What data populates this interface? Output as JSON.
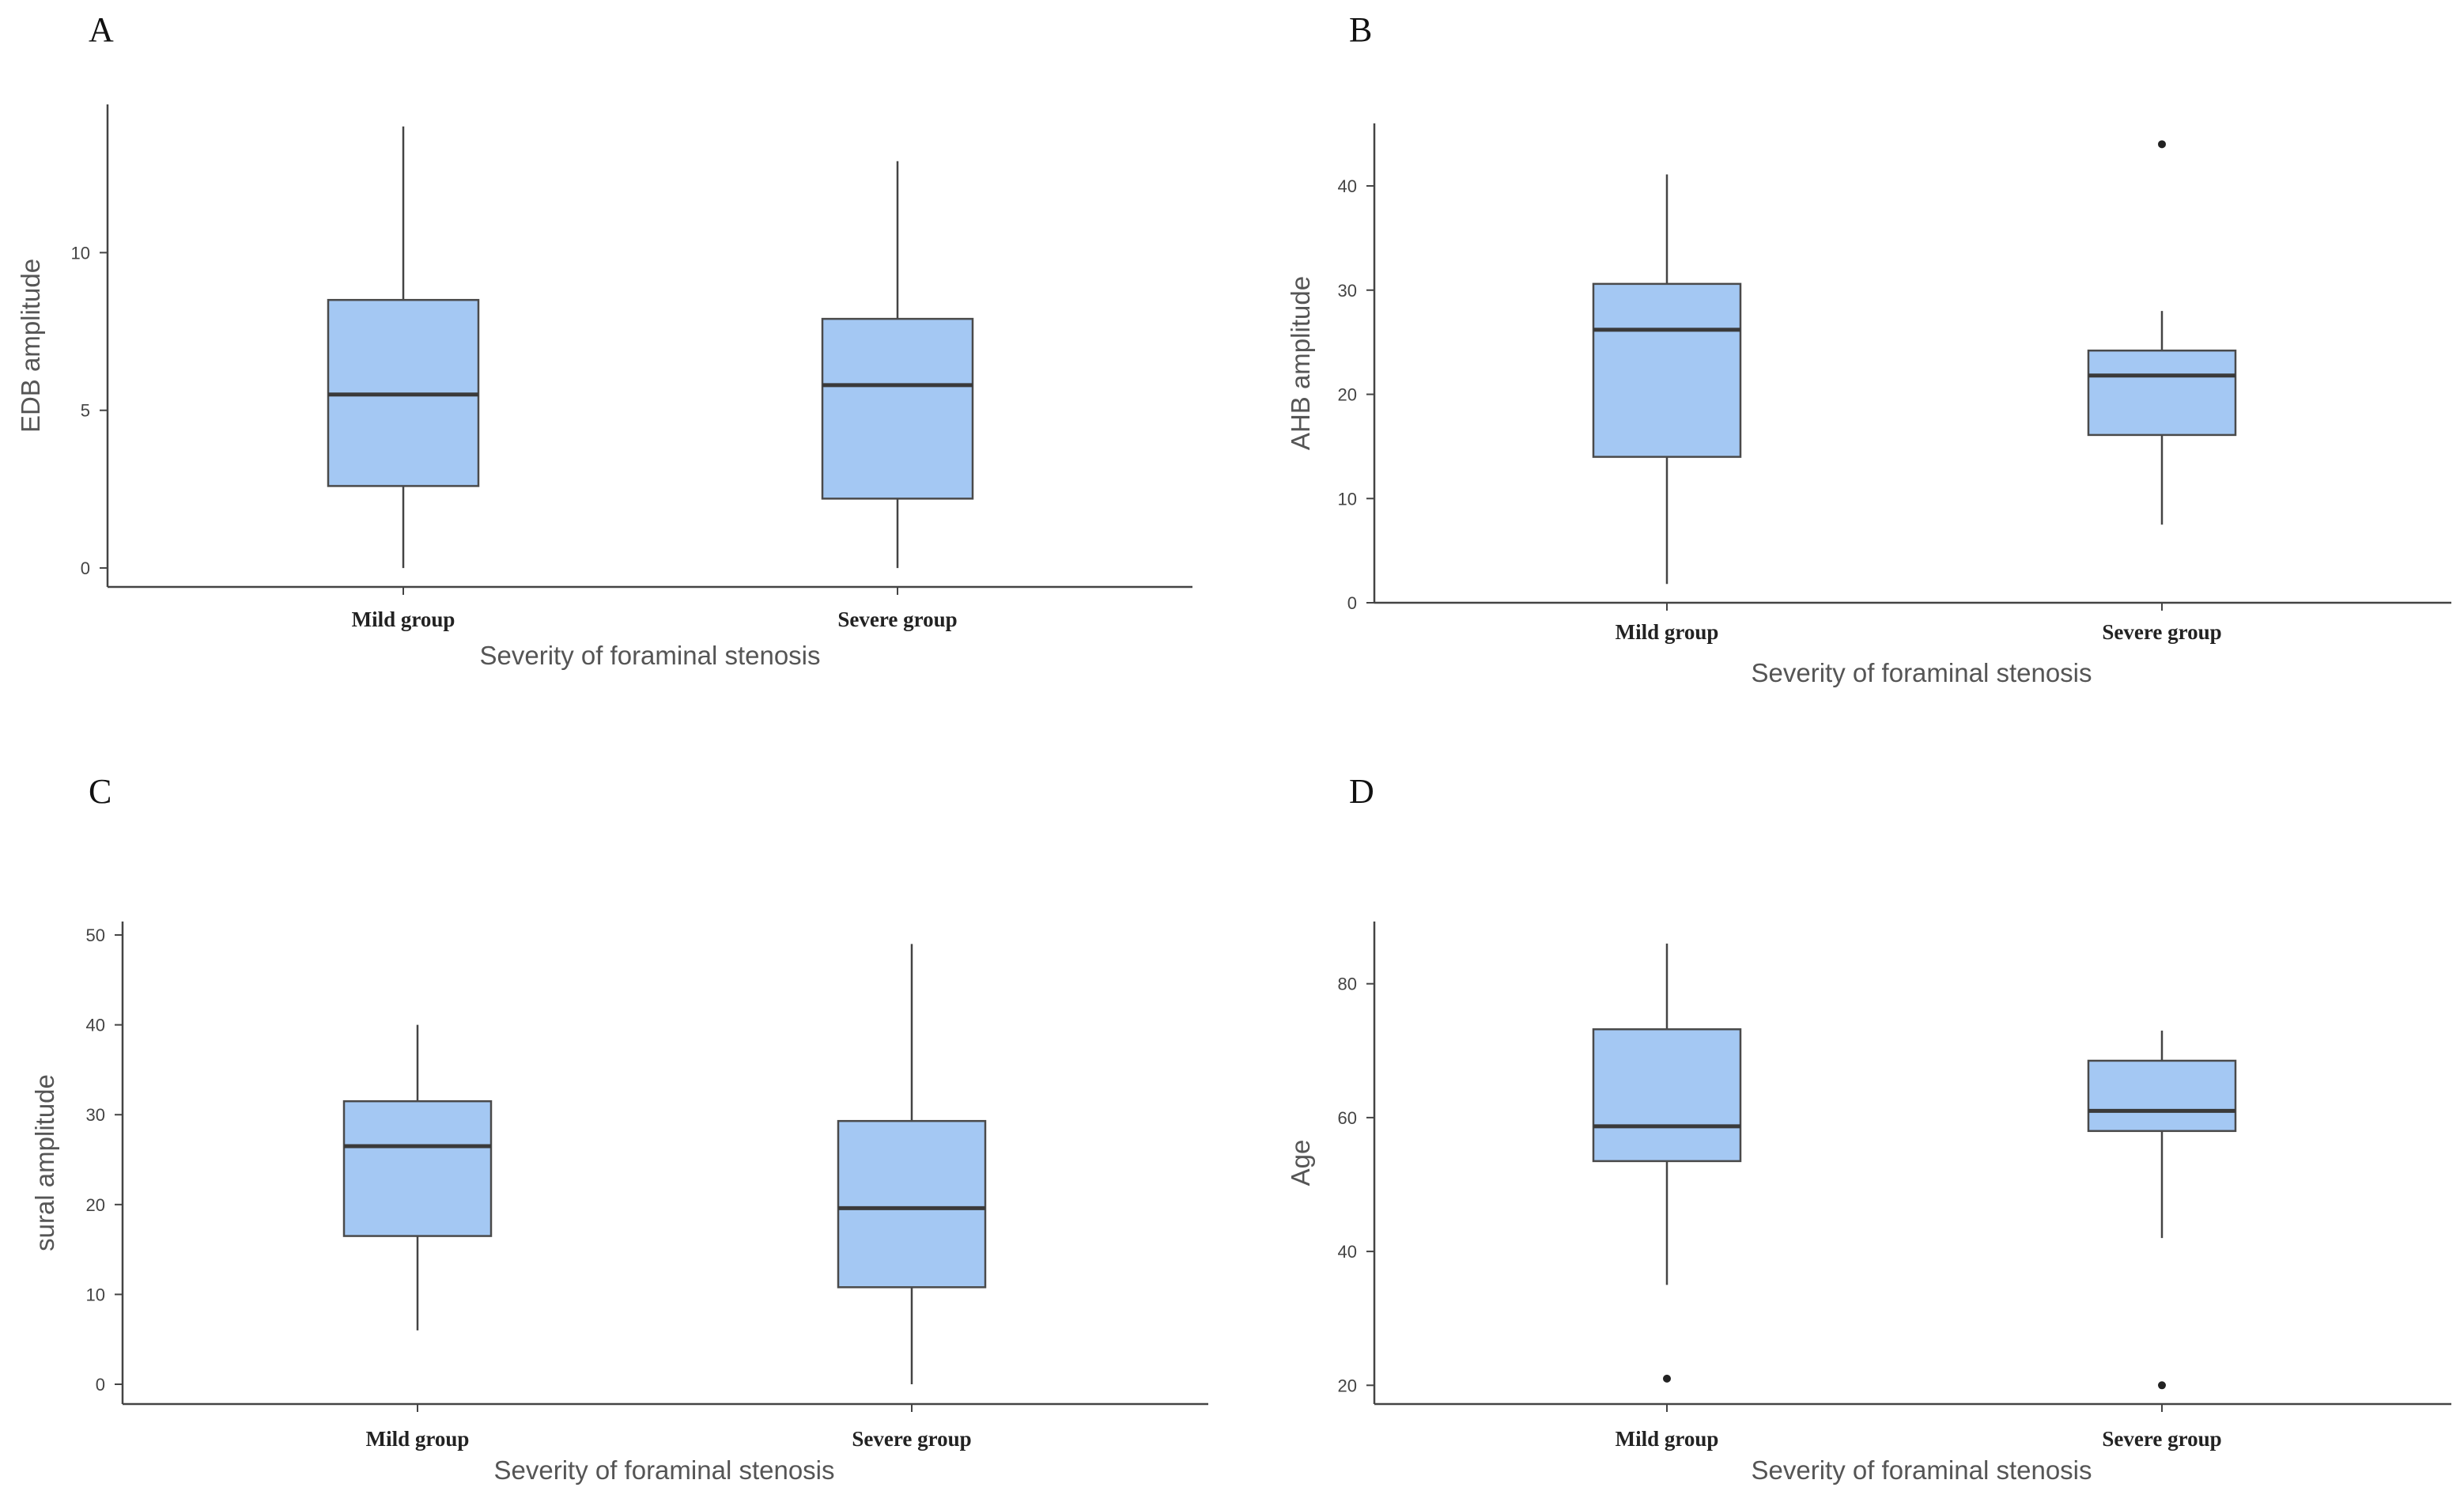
{
  "chart_data": [
    {
      "type": "box",
      "panel_label": "A",
      "title": "",
      "xlabel": "Severity of foraminal stenosis",
      "ylabel": "EDB amplitude",
      "ylim": [
        -0.6,
        14.7
      ],
      "yticks": [
        0,
        5,
        10
      ],
      "categories": [
        "Mild group",
        "Severe group"
      ],
      "boxes": [
        {
          "category": "Mild group",
          "min": 0,
          "q1": 2.6,
          "median": 5.5,
          "q3": 8.5,
          "max": 14.0,
          "outliers": []
        },
        {
          "category": "Severe group",
          "min": 0,
          "q1": 2.2,
          "median": 5.8,
          "q3": 7.9,
          "max": 12.9,
          "outliers": []
        }
      ]
    },
    {
      "type": "box",
      "panel_label": "B",
      "title": "",
      "xlabel": "Severity of foraminal stenosis",
      "ylabel": "AHB amplitude",
      "ylim": [
        0,
        46
      ],
      "yticks": [
        0,
        10,
        20,
        30,
        40
      ],
      "categories": [
        "Mild group",
        "Severe group"
      ],
      "boxes": [
        {
          "category": "Mild group",
          "min": 1.8,
          "q1": 14.0,
          "median": 26.2,
          "q3": 30.6,
          "max": 41.1,
          "outliers": []
        },
        {
          "category": "Severe group",
          "min": 7.5,
          "q1": 16.1,
          "median": 21.8,
          "q3": 24.2,
          "max": 28.0,
          "outliers": [
            44.0
          ]
        }
      ]
    },
    {
      "type": "box",
      "panel_label": "C",
      "title": "",
      "xlabel": "Severity of foraminal stenosis",
      "ylabel": "sural amplitude",
      "ylim": [
        -2.2,
        51.5
      ],
      "yticks": [
        0,
        10,
        20,
        30,
        40,
        50
      ],
      "categories": [
        "Mild group",
        "Severe group"
      ],
      "boxes": [
        {
          "category": "Mild group",
          "min": 6.0,
          "q1": 16.5,
          "median": 26.5,
          "q3": 31.5,
          "max": 40.0,
          "outliers": []
        },
        {
          "category": "Severe group",
          "min": 0,
          "q1": 10.8,
          "median": 19.6,
          "q3": 29.3,
          "max": 49.0,
          "outliers": []
        }
      ]
    },
    {
      "type": "box",
      "panel_label": "D",
      "title": "",
      "xlabel": "Severity of foraminal stenosis",
      "ylabel": "Age",
      "ylim": [
        17.2,
        89.3
      ],
      "yticks": [
        20,
        40,
        60,
        80
      ],
      "categories": [
        "Mild group",
        "Severe group"
      ],
      "boxes": [
        {
          "category": "Mild group",
          "min": 35.0,
          "q1": 53.5,
          "median": 58.7,
          "q3": 73.2,
          "max": 86.0,
          "outliers": [
            21.0
          ]
        },
        {
          "category": "Severe group",
          "min": 42.0,
          "q1": 58.0,
          "median": 61.0,
          "q3": 68.5,
          "max": 73.0,
          "outliers": [
            20.0
          ]
        }
      ]
    }
  ]
}
